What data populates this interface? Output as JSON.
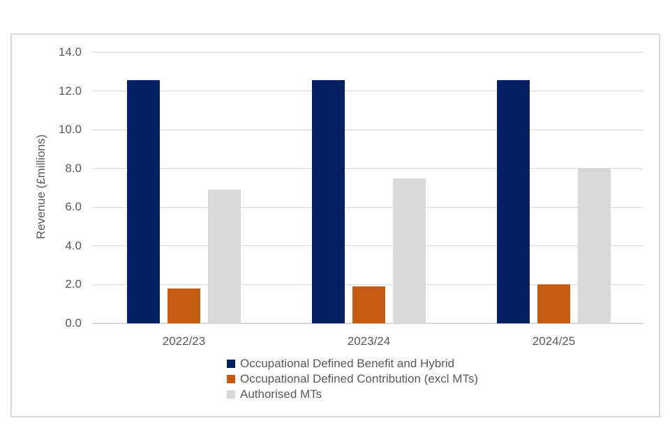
{
  "chart_data": {
    "type": "bar",
    "categories": [
      "2022/23",
      "2023/24",
      "2024/25"
    ],
    "series": [
      {
        "name": "Occupational Defined Benefit and Hybrid",
        "color": "#052164",
        "values": [
          12.55,
          12.55,
          12.55
        ]
      },
      {
        "name": "Occupational Defined Contribution (excl MTs)",
        "color": "#c55a11",
        "values": [
          1.8,
          1.9,
          2.0
        ]
      },
      {
        "name": "Authorised MTs",
        "color": "#d9d9d9",
        "values": [
          6.9,
          7.5,
          8.0
        ]
      }
    ],
    "ylabel": "Revenue (£millions)",
    "xlabel": "",
    "ylim": [
      0,
      14
    ],
    "ytick_step": 2,
    "ytick_decimals": 1,
    "grid": true,
    "legend_position": "bottom"
  },
  "colors": {
    "background": "#ffffff",
    "frame_border": "#d9d9d9",
    "gridline": "#d9d9d9",
    "axis_line": "#d9d9d9",
    "text": "#595959"
  }
}
